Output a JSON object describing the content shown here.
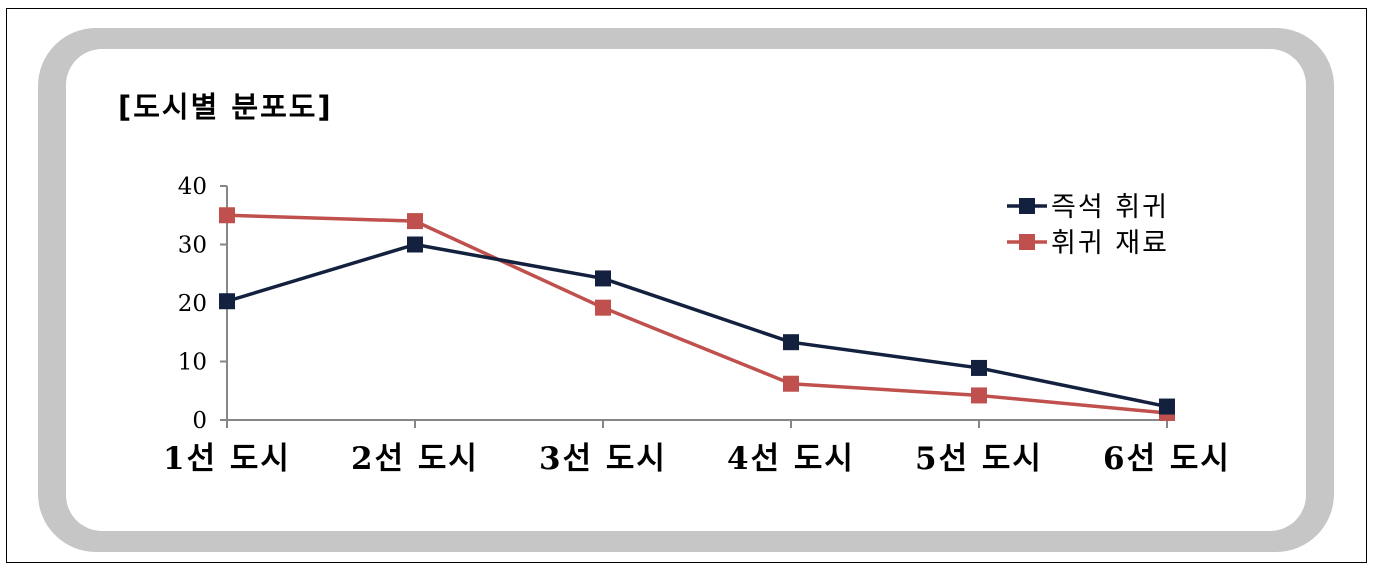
{
  "chart_data": {
    "type": "line",
    "title": "[도시별 분포도]",
    "categories": [
      "1선 도시",
      "2선 도시",
      "3선 도시",
      "4선 도시",
      "5선 도시",
      "6선 도시"
    ],
    "series": [
      {
        "name": "즉석 휘귀",
        "color": "#13213f",
        "values": [
          20.3,
          30,
          24.2,
          13.3,
          8.9,
          2.3
        ]
      },
      {
        "name": "휘귀 재료",
        "color": "#c0504d",
        "values": [
          35,
          34,
          19.2,
          6.2,
          4.2,
          1.2
        ]
      }
    ],
    "y_ticks": [
      "0",
      "10",
      "20",
      "30",
      "40"
    ],
    "ylim": [
      0,
      40
    ],
    "legend_position": "top-right",
    "grid": false,
    "marker": "square"
  },
  "colors": {
    "panel_border": "#c6c6c6",
    "axis": "#868686",
    "background": "#ffffff"
  }
}
